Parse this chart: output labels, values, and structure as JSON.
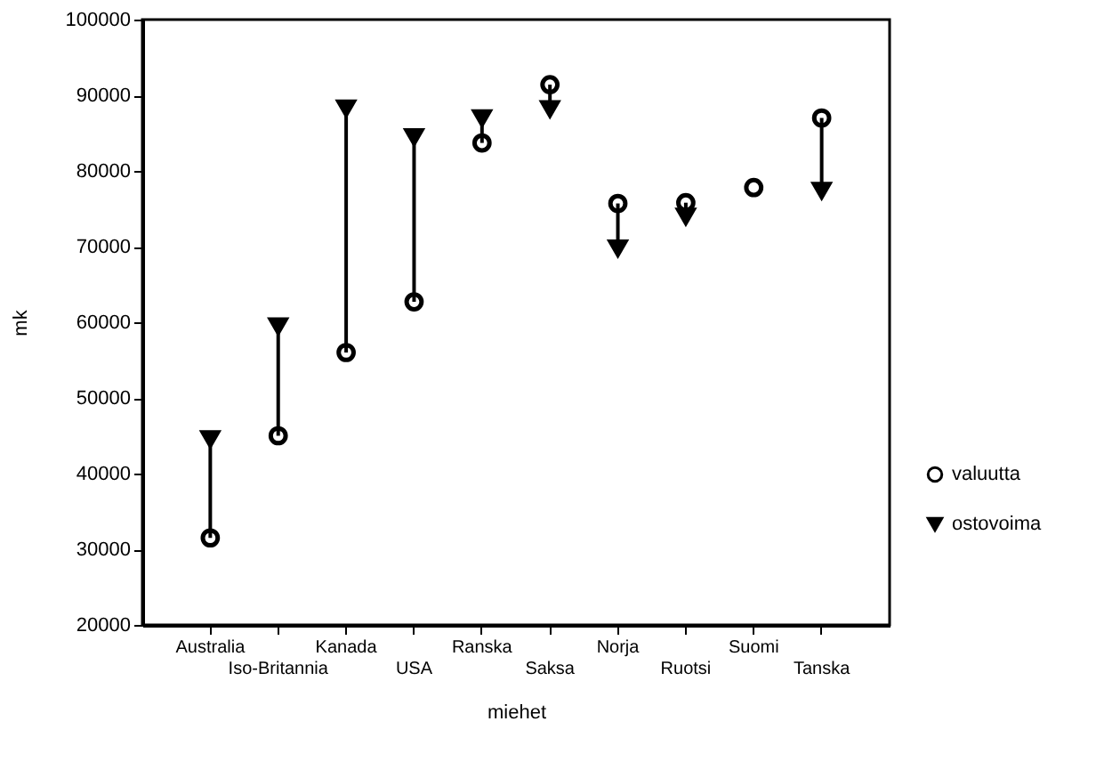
{
  "chart_data": {
    "type": "scatter",
    "xlabel": "miehet",
    "ylabel": "mk",
    "categories": [
      "Australia",
      "Iso-Britannia",
      "Kanada",
      "USA",
      "Ranska",
      "Saksa",
      "Norja",
      "Ruotsi",
      "Suomi",
      "Tanska"
    ],
    "series": [
      {
        "name": "valuutta",
        "color": "#000000",
        "marker": "circle",
        "values": [
          31500,
          45000,
          56000,
          62700,
          83700,
          91400,
          75700,
          75800,
          77800,
          87000
        ]
      },
      {
        "name": "ostovoima",
        "color": "#000000",
        "marker": "triangle",
        "values": [
          44600,
          59500,
          88300,
          84500,
          87000,
          88200,
          69800,
          74000,
          null,
          77400
        ]
      }
    ],
    "ylim": [
      20000,
      100000
    ],
    "yticks": [
      20000,
      30000,
      40000,
      50000,
      60000,
      70000,
      80000,
      90000,
      100000
    ],
    "grid": false,
    "legend": "bottom right"
  }
}
